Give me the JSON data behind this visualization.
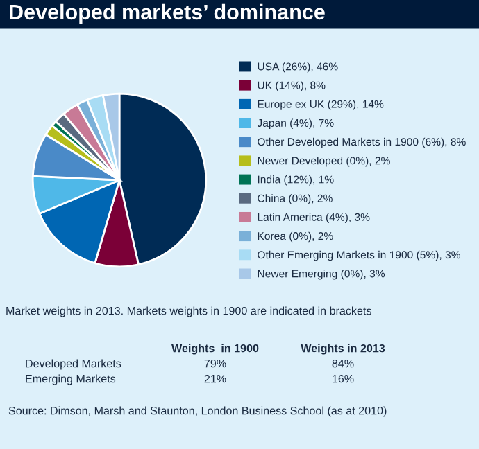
{
  "chart_data": {
    "type": "pie",
    "title": "Developed markets’ dominance",
    "categories": [
      "USA (26%), 46%",
      "UK (14%), 8%",
      "Europe ex UK (29%), 14%",
      "Japan (4%), 7%",
      "Other Developed Markets in 1900 (6%), 8%",
      "Newer Developed (0%), 2%",
      "India (12%), 1%",
      "China (0%), 2%",
      "Latin America (4%), 3%",
      "Korea (0%), 2%",
      "Other Emerging Markets in 1900 (5%), 3%",
      "Newer Emerging (0%), 3%"
    ],
    "values": [
      46,
      8,
      14,
      7,
      8,
      2,
      1,
      2,
      3,
      2,
      3,
      3
    ],
    "colors": [
      "#002b55",
      "#7b0037",
      "#0066b3",
      "#4fb8e8",
      "#4a8ac8",
      "#b6be1c",
      "#007355",
      "#5a6a80",
      "#c87a96",
      "#7ab0d8",
      "#a8dcf4",
      "#a8c8e8"
    ],
    "legend": "right",
    "annotations": [
      "Market weights in 2013. Markets weights in 1900 are indicated in brackets",
      "Weights  in 1900",
      "Weights in 2013",
      "Developed Markets",
      "79%",
      "84%",
      "Emerging Markets",
      "21%",
      "16%",
      "Source: Dimson, Marsh and Staunton, London Business School (as at 2010)"
    ]
  }
}
